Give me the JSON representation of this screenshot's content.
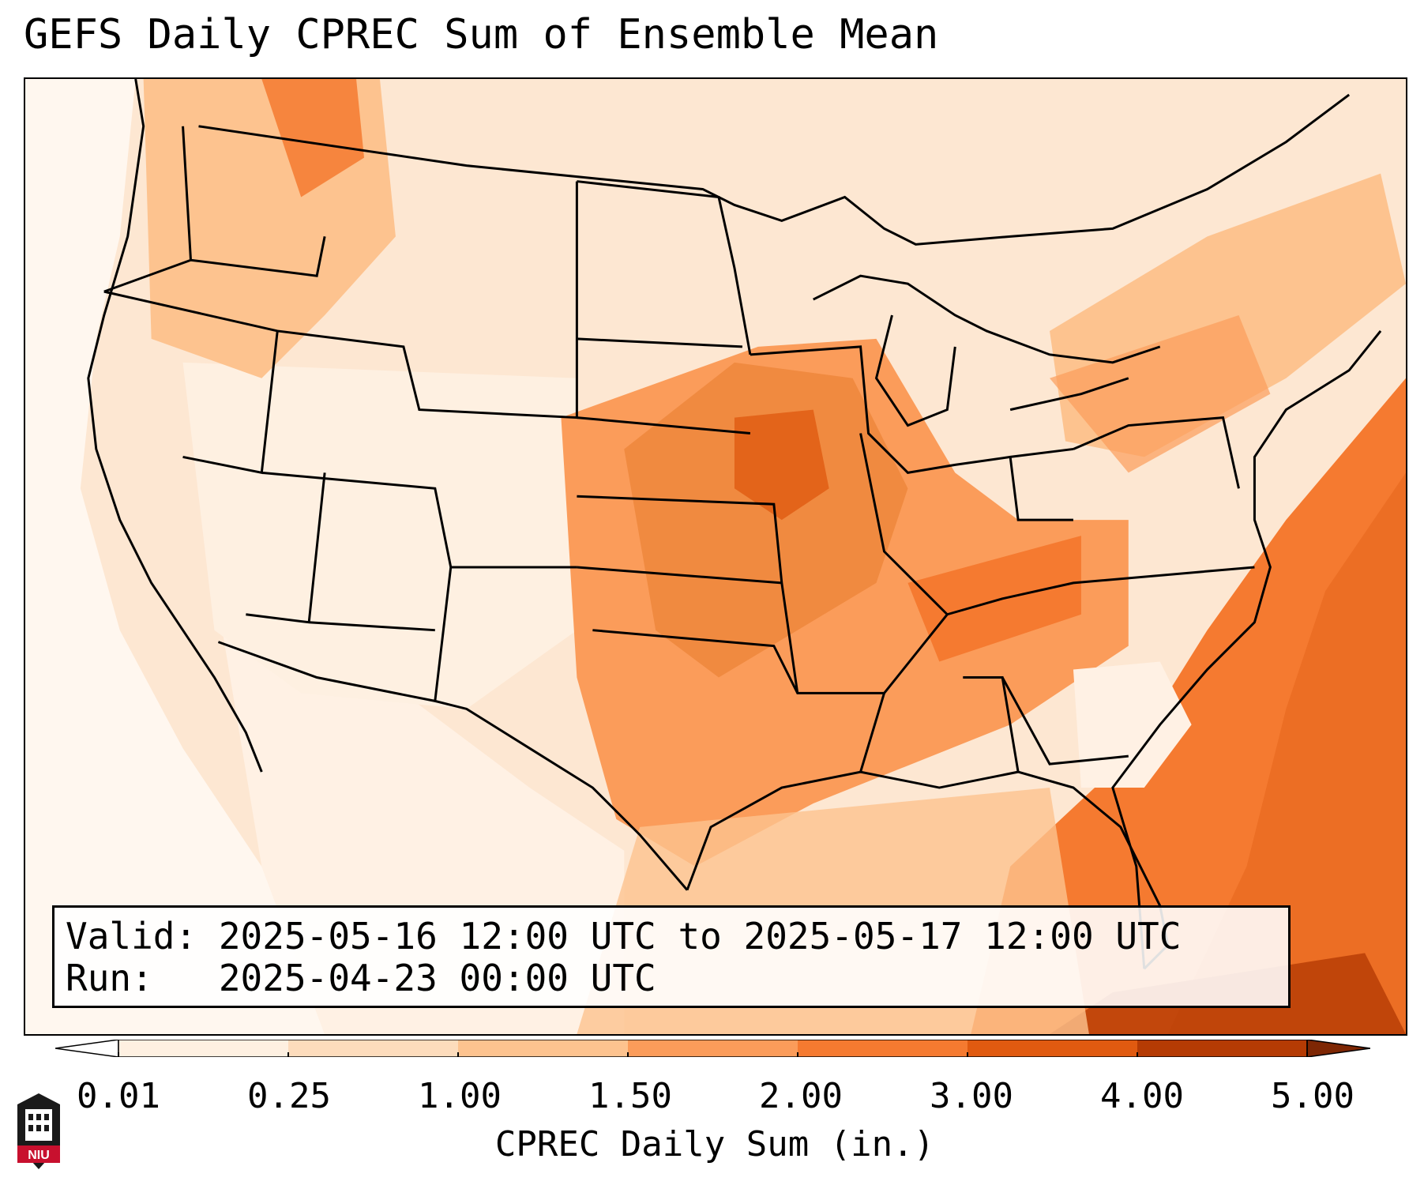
{
  "title": "GEFS Daily CPREC Sum of Ensemble Mean",
  "info": {
    "valid_line": "Valid: 2025-05-16 12:00 UTC to 2025-05-17 12:00 UTC",
    "run_line": "Run:   2025-04-23 00:00 UTC"
  },
  "colorbar": {
    "label": "CPREC Daily Sum (in.)",
    "ticks": [
      "0.01",
      "0.25",
      "1.00",
      "1.50",
      "2.00",
      "3.00",
      "4.00",
      "5.00"
    ],
    "colors": [
      "#ffffff",
      "#fef0e1",
      "#fddcbc",
      "#fdc38f",
      "#fb9c5a",
      "#f57a30",
      "#e05a10",
      "#b53b04",
      "#7e2704"
    ]
  },
  "logo": {
    "text": "NIU",
    "color": "#c8102e"
  },
  "colors": {
    "land_base": "#fde7d2",
    "ocean_pacific": "#fff7ef",
    "heavy": "#f08a40",
    "heaviest": "#d45a12",
    "borders": "#000000"
  }
}
